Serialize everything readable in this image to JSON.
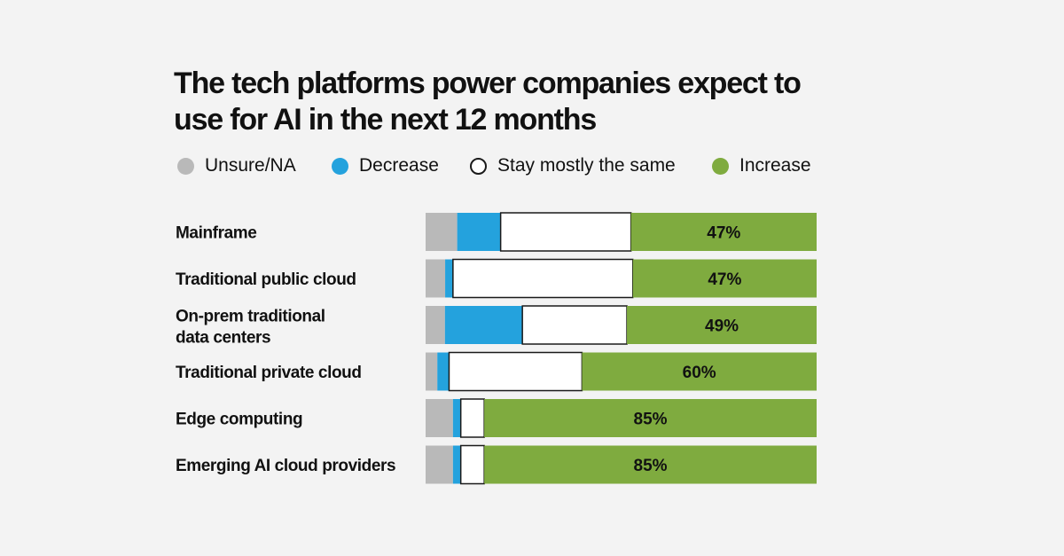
{
  "colors": {
    "Unsure/NA": "#b9b9b9",
    "Decrease": "#24a2dd",
    "Stay mostly the same": "#ffffff",
    "Increase": "#7fab3f",
    "stroke": "#1a1a1a",
    "background": "#f3f3f3"
  },
  "chart_data": {
    "type": "bar",
    "orientation": "horizontal",
    "stacked": true,
    "percent_stacked": true,
    "title": "The tech platforms power companies expect to use for AI in the next 12 months",
    "legend": {
      "placement": "top",
      "entries": [
        "Unsure/NA",
        "Decrease",
        "Stay mostly the same",
        "Increase"
      ]
    },
    "categories": [
      "Mainframe",
      "Traditional public cloud",
      "On-prem traditional data centers",
      "Traditional private cloud",
      "Edge computing",
      "Emerging AI cloud providers"
    ],
    "series": [
      {
        "name": "Unsure/NA",
        "values": [
          8,
          5,
          5,
          3,
          7,
          7
        ]
      },
      {
        "name": "Decrease",
        "values": [
          11,
          2,
          20,
          3,
          2,
          2
        ]
      },
      {
        "name": "Stay mostly the same",
        "values": [
          33,
          46,
          27,
          34,
          6,
          6
        ]
      },
      {
        "name": "Increase",
        "values": [
          47,
          47,
          49,
          60,
          85,
          85
        ]
      }
    ],
    "data_labels": {
      "series": "Increase",
      "values": [
        "47%",
        "47%",
        "49%",
        "60%",
        "85%",
        "85%"
      ]
    },
    "xlim": [
      0,
      100
    ],
    "xlabel": "",
    "ylabel": "",
    "grid": false
  }
}
